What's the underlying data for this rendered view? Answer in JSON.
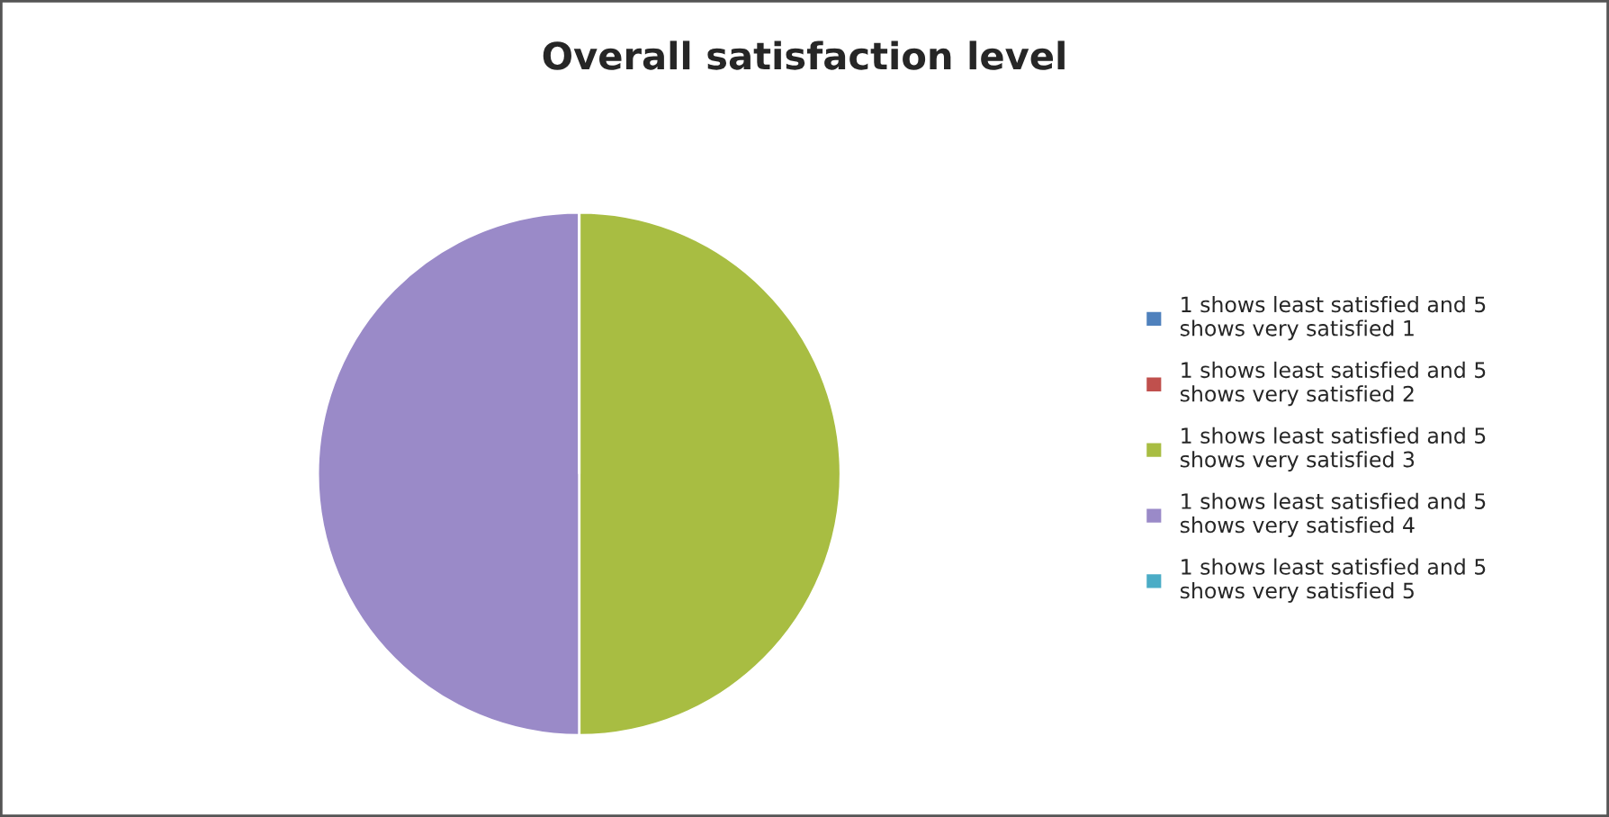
{
  "chart_data": {
    "type": "pie",
    "title": "Overall satisfaction level",
    "categories": [
      "1 shows least satisfied and 5 shows very satisfied 1",
      "1 shows least satisfied and 5 shows very satisfied 2",
      "1 shows least satisfied and 5 shows very satisfied 3",
      "1 shows least satisfied and 5 shows very satisfied 4",
      "1 shows least satisfied and 5 shows very satisfied 5"
    ],
    "values": [
      0,
      0,
      50,
      50,
      0
    ],
    "colors": [
      "#4f81bd",
      "#c0504d",
      "#a8bd42",
      "#9a8ac8",
      "#4bacc6"
    ],
    "legend": "right"
  }
}
